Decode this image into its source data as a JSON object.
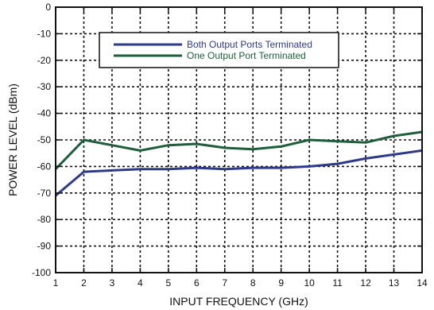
{
  "chart_data": {
    "type": "line",
    "xlabel": "INPUT FREQUENCY (GHz)",
    "ylabel": "POWER LEVEL (dBm)",
    "xlim": [
      1,
      14
    ],
    "ylim": [
      -100,
      0
    ],
    "x_ticks": [
      1,
      2,
      3,
      4,
      5,
      6,
      7,
      8,
      9,
      10,
      11,
      12,
      13,
      14
    ],
    "y_ticks": [
      0,
      -10,
      -20,
      -30,
      -40,
      -50,
      -60,
      -70,
      -80,
      -90,
      -100
    ],
    "grid": true,
    "legend_position": "top-center",
    "x": [
      1,
      2,
      3,
      4,
      5,
      6,
      7,
      8,
      9,
      10,
      11,
      12,
      13,
      14
    ],
    "series": [
      {
        "name": "Both Output Ports Terminated",
        "color": "#2e3a87",
        "values": [
          -71,
          -62,
          -61.5,
          -61,
          -61,
          -60.5,
          -61,
          -60.5,
          -60.5,
          -60,
          -59,
          -57,
          -55.5,
          -54
        ]
      },
      {
        "name": "One Output Port Terminated",
        "color": "#1e5e3a",
        "values": [
          -61,
          -50,
          -52,
          -54,
          -52,
          -51.5,
          -53,
          -53.5,
          -52.5,
          -50,
          -50.5,
          -51,
          -48.5,
          -47
        ]
      }
    ]
  }
}
